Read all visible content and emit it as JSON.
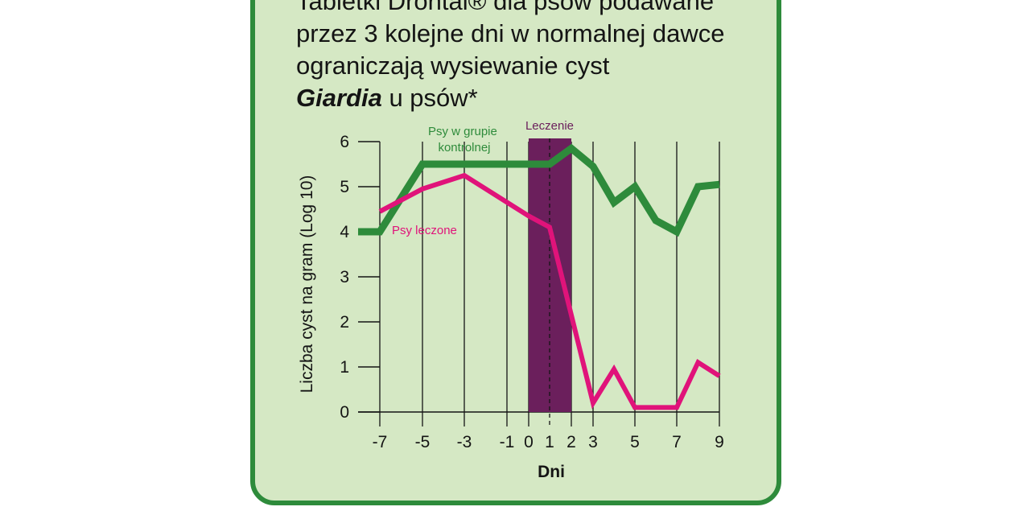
{
  "heading": {
    "line1": "Tabletki Drontal® dla psów podawane",
    "line2": "przez 3 kolejne dni w normalnej dawce",
    "line3": "ograniczają wysiewanie cyst",
    "line4_italic": "Giardia",
    "line4_rest": " u psów*"
  },
  "colors": {
    "card_bg": "#d5e8c4",
    "card_border": "#2e8b3b",
    "control": "#2e8b3b",
    "treated": "#e0137a",
    "treatment_band": "#6b1f5c"
  },
  "chart_data": {
    "type": "line",
    "xlabel": "Dni",
    "ylabel": "Liczba cyst na gram (Log 10)",
    "x_ticks": [
      "-7",
      "-5",
      "-3",
      "-1",
      "0",
      "1",
      "2",
      "3",
      "5",
      "7",
      "9"
    ],
    "x_tick_positions": [
      -7,
      -5,
      -3,
      -1,
      0,
      1,
      2,
      3,
      5,
      7,
      9
    ],
    "y_ticks": [
      "0",
      "1",
      "2",
      "3",
      "4",
      "5",
      "6"
    ],
    "xlim": [
      -7,
      9
    ],
    "ylim": [
      0,
      6
    ],
    "grid": "vertical",
    "treatment_period": {
      "label": "Leczenie",
      "x_start": 0,
      "x_end": 2
    },
    "dashed_line_x": 1,
    "series": [
      {
        "name": "Psy w grupie kontrolnej",
        "color": "#2e8b3b",
        "points": [
          [
            -8,
            4.0
          ],
          [
            -7,
            4.0
          ],
          [
            -5,
            5.5
          ],
          [
            1,
            5.5
          ],
          [
            2,
            5.85
          ],
          [
            3,
            5.45
          ],
          [
            4,
            4.65
          ],
          [
            5,
            5.0
          ],
          [
            6,
            4.25
          ],
          [
            7,
            4.0
          ],
          [
            8,
            5.0
          ],
          [
            9,
            5.05
          ]
        ]
      },
      {
        "name": "Psy leczone",
        "color": "#e0137a",
        "points": [
          [
            -7,
            4.45
          ],
          [
            -5,
            4.95
          ],
          [
            -3,
            5.25
          ],
          [
            0,
            4.35
          ],
          [
            1,
            4.1
          ],
          [
            3,
            0.2
          ],
          [
            4,
            0.95
          ],
          [
            5,
            0.1
          ],
          [
            7,
            0.1
          ],
          [
            8,
            1.1
          ],
          [
            9,
            0.8
          ]
        ]
      }
    ]
  }
}
